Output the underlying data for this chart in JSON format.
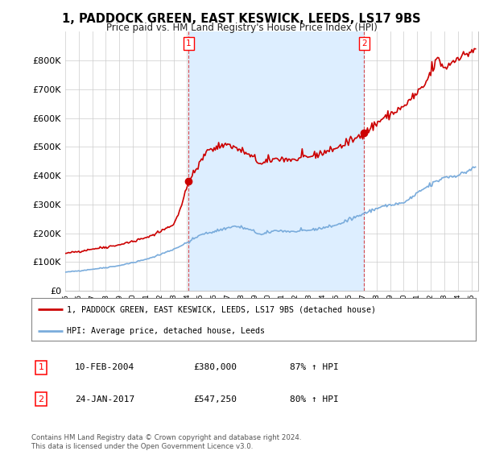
{
  "title": "1, PADDOCK GREEN, EAST KESWICK, LEEDS, LS17 9BS",
  "subtitle": "Price paid vs. HM Land Registry's House Price Index (HPI)",
  "legend_line1": "1, PADDOCK GREEN, EAST KESWICK, LEEDS, LS17 9BS (detached house)",
  "legend_line2": "HPI: Average price, detached house, Leeds",
  "sale1_label": "1",
  "sale1_date_str": "10-FEB-2004",
  "sale1_price_str": "£380,000",
  "sale1_hpi_str": "87% ↑ HPI",
  "sale1_year": 2004.12,
  "sale1_value": 380000,
  "sale2_label": "2",
  "sale2_date_str": "24-JAN-2017",
  "sale2_price_str": "£547,250",
  "sale2_hpi_str": "80% ↑ HPI",
  "sale2_year": 2017.07,
  "sale2_value": 547250,
  "hpi_line_color": "#7aacdc",
  "price_line_color": "#cc0000",
  "background_color": "#ffffff",
  "plot_bg_color": "#ffffff",
  "shade_color": "#ddeeff",
  "grid_color": "#cccccc",
  "ylim": [
    0,
    900000
  ],
  "yticks": [
    0,
    100000,
    200000,
    300000,
    400000,
    500000,
    600000,
    700000,
    800000
  ],
  "xlim_start": 1995.0,
  "xlim_end": 2025.5,
  "footer": "Contains HM Land Registry data © Crown copyright and database right 2024.\nThis data is licensed under the Open Government Licence v3.0."
}
